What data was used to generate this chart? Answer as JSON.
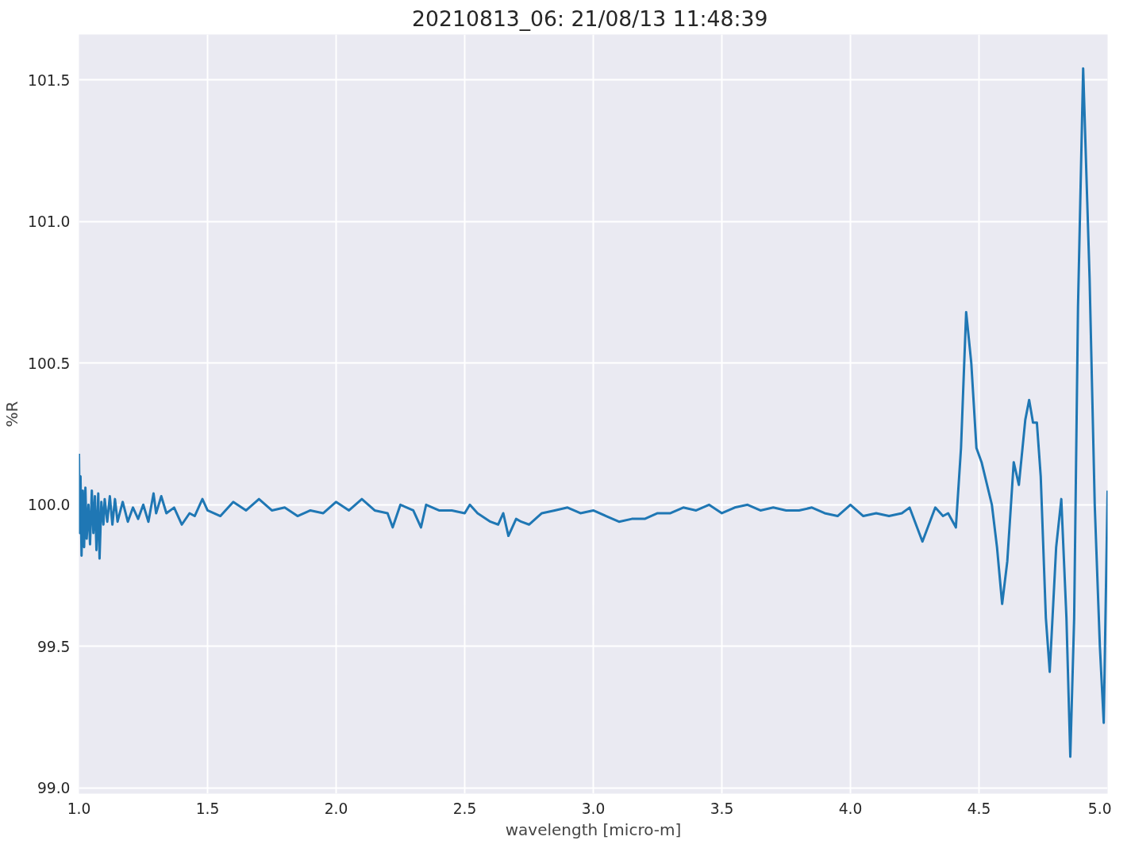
{
  "chart_data": {
    "type": "line",
    "title": "20210813_06:  21/08/13 11:48:39",
    "xlabel": "wavelength [micro-m]",
    "ylabel": "%R",
    "xlim": [
      1.0,
      5.0
    ],
    "ylim": [
      98.98,
      101.66
    ],
    "xticks": [
      {
        "value": 1.0,
        "label": "1.0"
      },
      1.5,
      {
        "value": 2.0,
        "label": "2.0"
      },
      2.5,
      {
        "value": 3.0,
        "label": "3.0"
      },
      3.5,
      {
        "value": 4.0,
        "label": "4.0"
      },
      4.5,
      {
        "value": 5.0,
        "label": "5.0"
      }
    ],
    "yticks": [
      {
        "value": 99.0,
        "label": "99.0"
      },
      99.5,
      {
        "value": 100.0,
        "label": "100.0"
      },
      100.5,
      {
        "value": 101.0,
        "label": "101.0"
      },
      101.5
    ],
    "grid": true,
    "line_style": "solid",
    "marker": "none",
    "x": [
      1.0,
      1.003,
      1.006,
      1.01,
      1.015,
      1.02,
      1.025,
      1.03,
      1.037,
      1.043,
      1.05,
      1.056,
      1.062,
      1.068,
      1.075,
      1.08,
      1.087,
      1.095,
      1.1,
      1.11,
      1.12,
      1.13,
      1.14,
      1.15,
      1.17,
      1.19,
      1.21,
      1.23,
      1.25,
      1.27,
      1.29,
      1.3,
      1.32,
      1.34,
      1.37,
      1.4,
      1.43,
      1.45,
      1.48,
      1.5,
      1.55,
      1.6,
      1.65,
      1.7,
      1.75,
      1.8,
      1.85,
      1.9,
      1.95,
      2.0,
      2.05,
      2.1,
      2.15,
      2.2,
      2.22,
      2.25,
      2.3,
      2.33,
      2.35,
      2.4,
      2.45,
      2.5,
      2.52,
      2.55,
      2.6,
      2.63,
      2.65,
      2.67,
      2.7,
      2.72,
      2.75,
      2.8,
      2.85,
      2.9,
      2.95,
      3.0,
      3.05,
      3.1,
      3.15,
      3.2,
      3.25,
      3.3,
      3.35,
      3.4,
      3.45,
      3.5,
      3.55,
      3.6,
      3.65,
      3.7,
      3.75,
      3.8,
      3.85,
      3.9,
      3.95,
      4.0,
      4.05,
      4.1,
      4.15,
      4.2,
      4.23,
      4.28,
      4.33,
      4.36,
      4.38,
      4.41,
      4.43,
      4.45,
      4.47,
      4.49,
      4.51,
      4.55,
      4.57,
      4.59,
      4.61,
      4.635,
      4.655,
      4.68,
      4.695,
      4.71,
      4.725,
      4.74,
      4.76,
      4.775,
      4.8,
      4.82,
      4.84,
      4.855,
      4.87,
      4.885,
      4.905,
      4.93,
      4.95,
      4.97,
      4.985,
      5.0
    ],
    "series": [
      {
        "color": "#1f77b4",
        "values": [
          100.18,
          99.9,
          100.1,
          99.82,
          100.05,
          99.85,
          100.06,
          99.88,
          100.0,
          99.86,
          100.05,
          99.9,
          100.03,
          99.84,
          100.04,
          99.81,
          100.01,
          99.93,
          100.02,
          99.94,
          100.03,
          99.93,
          100.02,
          99.94,
          100.01,
          99.94,
          99.99,
          99.95,
          100.0,
          99.94,
          100.04,
          99.97,
          100.03,
          99.97,
          99.99,
          99.93,
          99.97,
          99.96,
          100.02,
          99.98,
          99.96,
          100.01,
          99.98,
          100.02,
          99.98,
          99.99,
          99.96,
          99.98,
          99.97,
          100.01,
          99.98,
          100.02,
          99.98,
          99.97,
          99.92,
          100.0,
          99.98,
          99.92,
          100.0,
          99.98,
          99.98,
          99.97,
          100.0,
          99.97,
          99.94,
          99.93,
          99.97,
          99.89,
          99.95,
          99.94,
          99.93,
          99.97,
          99.98,
          99.99,
          99.97,
          99.98,
          99.96,
          99.94,
          99.95,
          99.95,
          99.97,
          99.97,
          99.99,
          99.98,
          100.0,
          99.97,
          99.99,
          100.0,
          99.98,
          99.99,
          99.98,
          99.98,
          99.99,
          99.97,
          99.96,
          100.0,
          99.96,
          99.97,
          99.96,
          99.97,
          99.99,
          99.87,
          99.99,
          99.96,
          99.97,
          99.92,
          100.2,
          100.68,
          100.5,
          100.2,
          100.15,
          100.0,
          99.85,
          99.65,
          99.8,
          100.15,
          100.07,
          100.3,
          100.37,
          100.29,
          100.29,
          100.1,
          99.6,
          99.41,
          99.85,
          100.02,
          99.6,
          99.11,
          99.6,
          100.7,
          101.54,
          100.8,
          100.0,
          99.5,
          99.23,
          100.05
        ]
      }
    ]
  }
}
